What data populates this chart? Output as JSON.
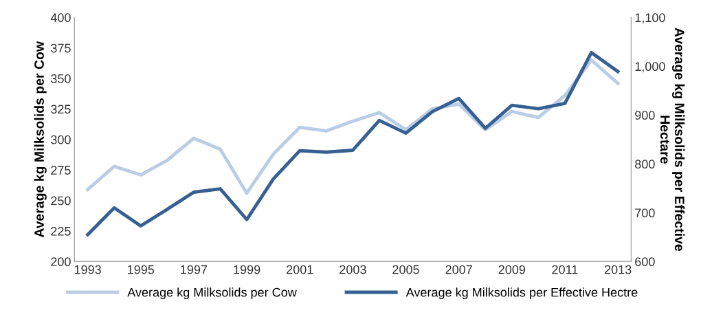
{
  "chart_data": {
    "type": "line",
    "ylabel": "Average kg Milksolids per Cow",
    "y2label": "Average kg Milksolids per Effective\nHectare",
    "x": [
      1993,
      1994,
      1995,
      1996,
      1997,
      1998,
      1999,
      2000,
      2001,
      2002,
      2003,
      2004,
      2005,
      2006,
      2007,
      2008,
      2009,
      2010,
      2011,
      2012,
      2013
    ],
    "xlim": [
      1992.5,
      2013.5
    ],
    "xticks": [
      1993,
      1995,
      1997,
      1999,
      2001,
      2003,
      2005,
      2007,
      2009,
      2011,
      2013
    ],
    "ylim": [
      200,
      400
    ],
    "yticks": [
      200,
      225,
      250,
      275,
      300,
      325,
      350,
      375,
      400
    ],
    "y2lim": [
      600,
      1100
    ],
    "y2ticks": [
      600,
      700,
      800,
      900,
      {
        "value": 1000,
        "label": "1,000"
      },
      {
        "value": 1100,
        "label": "1,100"
      }
    ],
    "series": [
      {
        "name": "Average kg Milksolids per Cow",
        "color": "#b9cde5",
        "values": [
          259,
          278,
          271,
          283,
          301,
          292,
          256,
          288,
          310,
          307,
          315,
          322,
          308,
          325,
          329,
          308,
          323,
          318,
          336,
          365,
          346
        ]
      },
      {
        "name": "Average kg Milksolids per Effective Hectre",
        "color": "#376092",
        "axis": "y2",
        "values": [
          655,
          710,
          673,
          707,
          742,
          749,
          686,
          769,
          827,
          824,
          828,
          889,
          863,
          907,
          934,
          873,
          920,
          913,
          924,
          1028,
          989
        ]
      }
    ],
    "legend": "bottom",
    "grid": false,
    "marker": "none",
    "line_style": "solid"
  }
}
